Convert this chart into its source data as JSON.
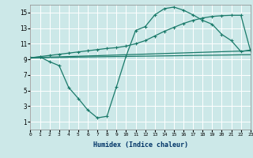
{
  "xlabel": "Humidex (Indice chaleur)",
  "bg_color": "#cce8e8",
  "grid_color": "#ffffff",
  "line_color": "#1a7a6a",
  "x_min": 0,
  "x_max": 23,
  "y_min": 0,
  "y_max": 16,
  "yticks": [
    1,
    3,
    5,
    7,
    9,
    11,
    13,
    15
  ],
  "xticks": [
    0,
    1,
    2,
    3,
    4,
    5,
    6,
    7,
    8,
    9,
    10,
    11,
    12,
    13,
    14,
    15,
    16,
    17,
    18,
    19,
    20,
    21,
    22,
    23
  ],
  "line1_x": [
    0,
    1,
    2,
    3,
    4,
    5,
    6,
    7,
    8,
    9,
    10,
    11,
    12,
    13,
    14,
    15,
    16,
    17,
    18,
    19,
    20,
    21,
    22,
    23
  ],
  "line1_y": [
    9.2,
    9.3,
    8.7,
    8.2,
    5.4,
    4.0,
    2.5,
    1.5,
    1.7,
    5.5,
    9.4,
    12.7,
    13.2,
    14.7,
    15.5,
    15.7,
    15.3,
    14.7,
    14.0,
    13.5,
    12.2,
    11.4,
    10.0,
    10.2
  ],
  "line2_x": [
    0,
    1,
    2,
    3,
    4,
    5,
    6,
    7,
    8,
    9,
    10,
    11,
    12,
    13,
    14,
    15,
    16,
    17,
    18,
    19,
    20,
    21,
    22,
    23
  ],
  "line2_y": [
    9.2,
    9.35,
    9.5,
    9.65,
    9.8,
    9.95,
    10.1,
    10.25,
    10.4,
    10.5,
    10.7,
    11.0,
    11.4,
    12.0,
    12.6,
    13.1,
    13.6,
    14.0,
    14.3,
    14.5,
    14.6,
    14.65,
    14.65,
    10.1
  ],
  "line3_x": [
    0,
    23
  ],
  "line3_y": [
    9.2,
    10.1
  ],
  "line4_x": [
    0,
    23
  ],
  "line4_y": [
    9.2,
    9.6
  ]
}
